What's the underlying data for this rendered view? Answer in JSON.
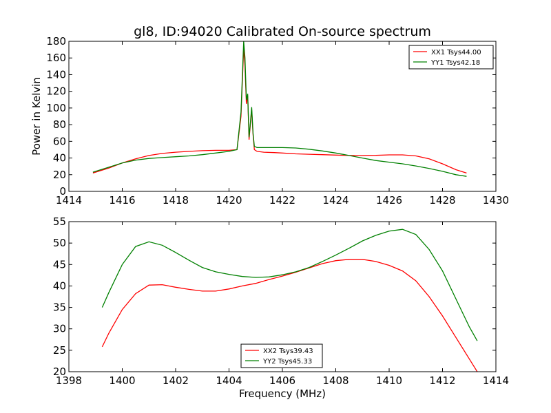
{
  "figure": {
    "title": "gl8, ID:94020 Calibrated On-source spectrum"
  },
  "chart_data": [
    {
      "type": "line",
      "title": "gl8, ID:94020 Calibrated On-source spectrum",
      "xlabel": "",
      "ylabel": "Power in Kelvin",
      "xlim": [
        1414,
        1430
      ],
      "ylim": [
        0,
        180
      ],
      "xticks": [
        "1414",
        "1416",
        "1418",
        "1420",
        "1422",
        "1424",
        "1426",
        "1428",
        "1430"
      ],
      "yticks": [
        "0",
        "20",
        "40",
        "60",
        "80",
        "100",
        "120",
        "140",
        "160",
        "180"
      ],
      "grid": false,
      "legend_position": "upper right",
      "series": [
        {
          "name": "XX1 Tsys44.00",
          "color": "#ff0000",
          "x": [
            1414.9,
            1415.5,
            1416.0,
            1416.5,
            1417.0,
            1417.5,
            1418.0,
            1418.5,
            1419.0,
            1419.5,
            1420.0,
            1420.3,
            1420.45,
            1420.55,
            1420.6,
            1420.65,
            1420.7,
            1420.75,
            1420.8,
            1420.85,
            1420.9,
            1420.95,
            1421.05,
            1421.3,
            1421.7,
            1422.0,
            1422.5,
            1423.0,
            1423.5,
            1424.0,
            1424.5,
            1425.0,
            1425.5,
            1426.0,
            1426.5,
            1427.0,
            1427.5,
            1428.0,
            1428.5,
            1428.9
          ],
          "y": [
            22,
            28,
            34,
            39,
            43,
            45.5,
            47,
            48,
            48.8,
            49.2,
            49.2,
            50,
            90,
            172,
            150,
            105,
            115,
            62,
            80,
            98,
            68,
            50,
            48,
            47,
            46.5,
            46,
            45,
            44.5,
            44,
            43.5,
            43,
            43,
            43.2,
            43.8,
            43.8,
            42.5,
            39,
            33,
            26,
            22
          ]
        },
        {
          "name": "YY1 Tsys42.18",
          "color": "#008000",
          "x": [
            1414.9,
            1415.5,
            1416.0,
            1416.5,
            1417.0,
            1417.5,
            1418.0,
            1418.5,
            1419.0,
            1419.5,
            1420.0,
            1420.3,
            1420.45,
            1420.55,
            1420.6,
            1420.65,
            1420.7,
            1420.75,
            1420.8,
            1420.85,
            1420.9,
            1420.95,
            1421.05,
            1421.3,
            1421.7,
            1422.0,
            1422.5,
            1423.0,
            1423.5,
            1424.0,
            1424.5,
            1425.0,
            1425.5,
            1426.0,
            1426.5,
            1427.0,
            1427.5,
            1428.0,
            1428.5,
            1428.9
          ],
          "y": [
            23,
            29,
            34,
            37.5,
            39.5,
            40.5,
            41.5,
            42.5,
            44,
            46,
            48,
            50,
            95,
            180,
            160,
            110,
            117,
            65,
            82,
            101,
            70,
            54,
            52.5,
            52.5,
            52.5,
            52.5,
            52,
            50.5,
            48.5,
            46,
            43,
            40,
            37,
            35,
            33,
            30.5,
            27.5,
            24,
            20,
            18
          ]
        }
      ]
    },
    {
      "type": "line",
      "title": "",
      "xlabel": "Frequency (MHz)",
      "ylabel": "",
      "xlim": [
        1398,
        1414
      ],
      "ylim": [
        20,
        55
      ],
      "xticks": [
        "1398",
        "1400",
        "1402",
        "1404",
        "1406",
        "1408",
        "1410",
        "1412",
        "1414"
      ],
      "yticks": [
        "20",
        "25",
        "30",
        "35",
        "40",
        "45",
        "50",
        "55"
      ],
      "grid": false,
      "legend_position": "lower center",
      "series": [
        {
          "name": "XX2 Tsys39.43",
          "color": "#ff0000",
          "x": [
            1399.25,
            1399.5,
            1400.0,
            1400.5,
            1401.0,
            1401.5,
            1402.0,
            1402.5,
            1403.0,
            1403.5,
            1404.0,
            1404.5,
            1405.0,
            1405.5,
            1406.0,
            1406.5,
            1407.0,
            1407.5,
            1408.0,
            1408.5,
            1409.0,
            1409.5,
            1410.0,
            1410.5,
            1411.0,
            1411.5,
            1412.0,
            1412.5,
            1413.0,
            1413.3
          ],
          "y": [
            25.8,
            29,
            34.5,
            38.2,
            40.2,
            40.3,
            39.7,
            39.2,
            38.8,
            38.8,
            39.3,
            40,
            40.6,
            41.5,
            42.3,
            43.2,
            44.2,
            45.2,
            45.9,
            46.2,
            46.2,
            45.7,
            44.8,
            43.5,
            41.2,
            37.5,
            33,
            28,
            23,
            20
          ]
        },
        {
          "name": "YY2 Tsys45.33",
          "color": "#008000",
          "x": [
            1399.25,
            1399.5,
            1400.0,
            1400.5,
            1401.0,
            1401.5,
            1402.0,
            1402.5,
            1403.0,
            1403.5,
            1404.0,
            1404.5,
            1405.0,
            1405.5,
            1406.0,
            1406.5,
            1407.0,
            1407.5,
            1408.0,
            1408.5,
            1409.0,
            1409.5,
            1410.0,
            1410.5,
            1411.0,
            1411.5,
            1412.0,
            1412.5,
            1413.0,
            1413.3
          ],
          "y": [
            35,
            38.5,
            45,
            49.2,
            50.3,
            49.5,
            47.8,
            46,
            44.3,
            43.3,
            42.7,
            42.2,
            42,
            42.1,
            42.6,
            43.3,
            44.3,
            45.7,
            47.2,
            48.8,
            50.5,
            51.8,
            52.8,
            53.2,
            52,
            48.5,
            43.5,
            37,
            30.5,
            27.2
          ]
        }
      ]
    }
  ]
}
